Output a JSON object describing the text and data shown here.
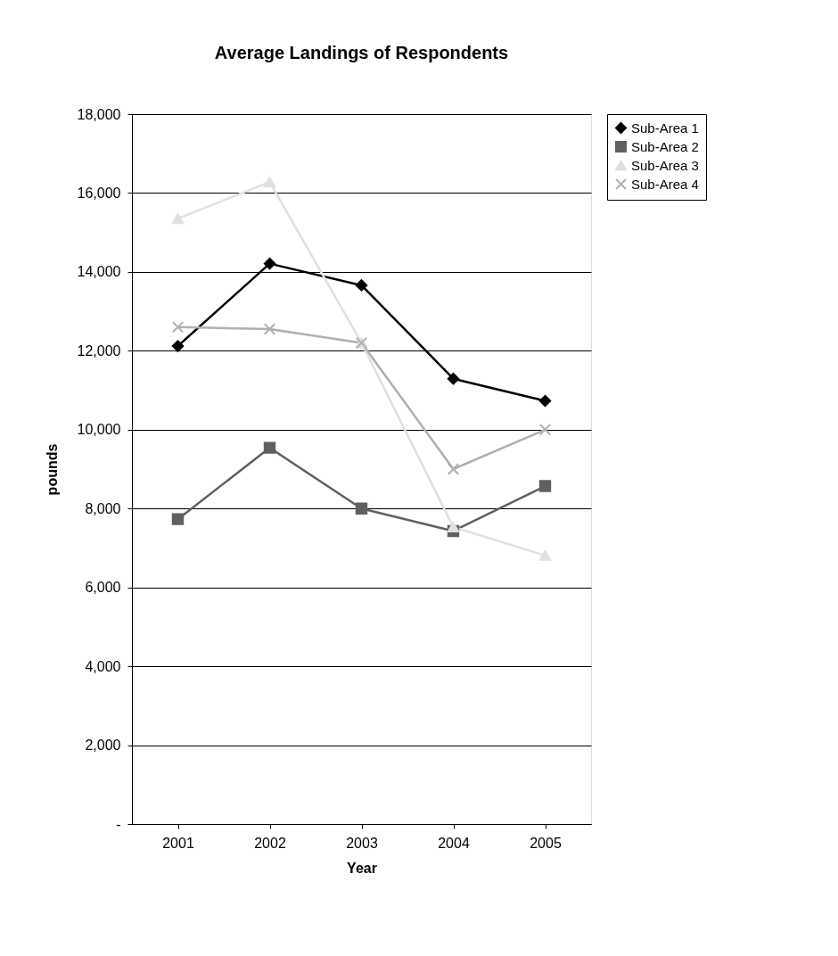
{
  "chart_data": {
    "type": "line",
    "title": "Average Landings of Respondents",
    "xlabel": "Year",
    "ylabel": "pounds",
    "categories": [
      "2001",
      "2002",
      "2003",
      "2004",
      "2005"
    ],
    "series": [
      {
        "name": "Sub-Area 1",
        "color": "#000000",
        "marker": "diamond",
        "values": [
          12120,
          14210,
          13660,
          11290,
          10730
        ]
      },
      {
        "name": "Sub-Area 2",
        "color": "#606060",
        "marker": "square",
        "values": [
          7730,
          9540,
          8000,
          7430,
          8570
        ]
      },
      {
        "name": "Sub-Area 3",
        "color": "#e0e0e0",
        "marker": "triangle",
        "values": [
          15350,
          16280,
          12200,
          7530,
          6810
        ]
      },
      {
        "name": "Sub-Area 4",
        "color": "#b0b0b0",
        "marker": "cross",
        "values": [
          12600,
          12550,
          12200,
          9000,
          10000
        ]
      }
    ],
    "ylim": [
      0,
      18000
    ],
    "yticks": [
      {
        "value": 0,
        "label": "-"
      },
      {
        "value": 2000,
        "label": "2,000"
      },
      {
        "value": 4000,
        "label": "4,000"
      },
      {
        "value": 6000,
        "label": "6,000"
      },
      {
        "value": 8000,
        "label": "8,000"
      },
      {
        "value": 10000,
        "label": "10,000"
      },
      {
        "value": 12000,
        "label": "12,000"
      },
      {
        "value": 14000,
        "label": "14,000"
      },
      {
        "value": 16000,
        "label": "16,000"
      },
      {
        "value": 18000,
        "label": "18,000"
      }
    ],
    "grid": "y",
    "legend": "right"
  }
}
